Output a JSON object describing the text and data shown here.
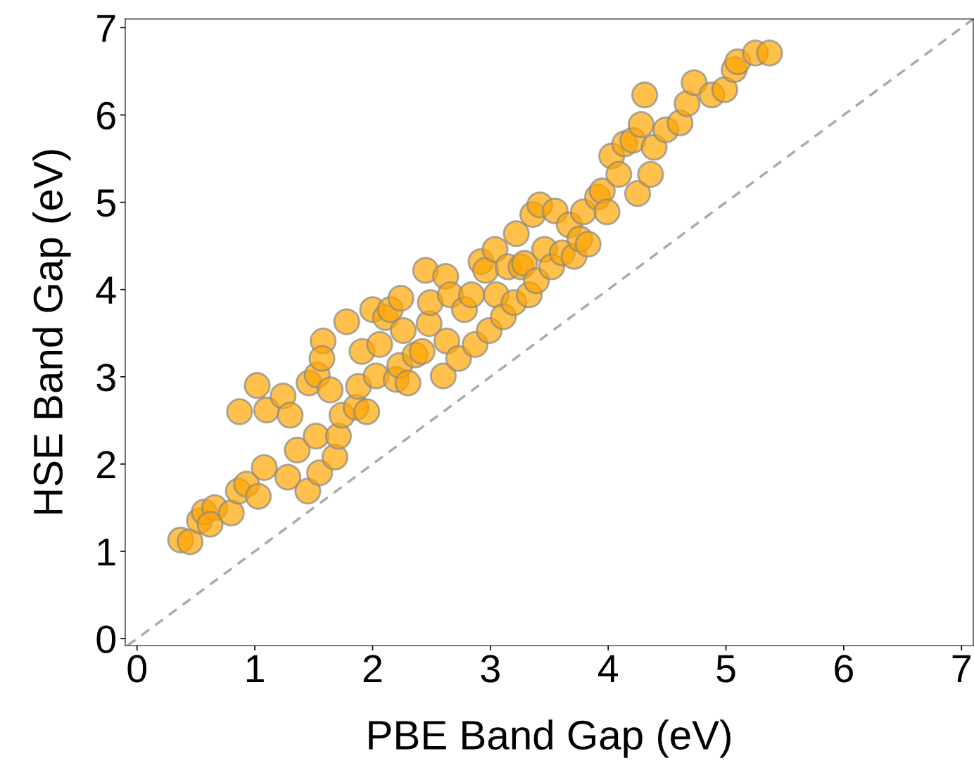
{
  "chart_data": {
    "type": "scatter",
    "xlabel": "PBE Band Gap (eV)",
    "ylabel": "HSE Band Gap (eV)",
    "xlim": [
      -0.1,
      7.1
    ],
    "ylim": [
      -0.08,
      7.1
    ],
    "xticks": [
      0,
      1,
      2,
      3,
      4,
      5,
      6,
      7
    ],
    "yticks": [
      0,
      1,
      2,
      3,
      4,
      5,
      6,
      7
    ],
    "grid": false,
    "series": [
      {
        "marker": "circle",
        "color": "#ffa500",
        "x": [
          0.37,
          0.45,
          0.53,
          0.57,
          0.66,
          0.62,
          0.8,
          0.86,
          0.93,
          1.03,
          1.08,
          0.87,
          1.02,
          1.1,
          1.24,
          1.3,
          1.28,
          1.36,
          1.45,
          1.46,
          1.53,
          1.58,
          1.57,
          1.52,
          1.55,
          1.64,
          1.68,
          1.71,
          1.74,
          1.78,
          1.86,
          1.88,
          1.91,
          1.95,
          2.0,
          2.03,
          2.06,
          2.11,
          2.15,
          2.2,
          2.23,
          2.24,
          2.26,
          2.3,
          2.36,
          2.42,
          2.45,
          2.48,
          2.49,
          2.6,
          2.62,
          2.63,
          2.66,
          2.73,
          2.78,
          2.84,
          2.87,
          2.92,
          2.96,
          2.99,
          3.04,
          3.05,
          3.11,
          3.15,
          3.2,
          3.22,
          3.26,
          3.29,
          3.33,
          3.36,
          3.39,
          3.42,
          3.46,
          3.52,
          3.55,
          3.61,
          3.67,
          3.71,
          3.76,
          3.79,
          3.83,
          3.91,
          3.95,
          3.99,
          4.03,
          4.09,
          4.14,
          4.21,
          4.25,
          4.28,
          4.31,
          4.36,
          4.39,
          4.49,
          4.61,
          4.67,
          4.73,
          4.88,
          4.99,
          5.07,
          5.1,
          5.25,
          5.37
        ],
        "values": [
          1.13,
          1.11,
          1.35,
          1.45,
          1.5,
          1.31,
          1.44,
          1.69,
          1.77,
          1.63,
          1.96,
          2.6,
          2.9,
          2.62,
          2.78,
          2.56,
          1.85,
          2.16,
          1.69,
          2.93,
          3.02,
          3.41,
          3.21,
          2.32,
          1.9,
          2.85,
          2.08,
          2.32,
          2.56,
          3.63,
          2.65,
          2.89,
          3.29,
          2.6,
          3.77,
          3.01,
          3.37,
          3.68,
          3.77,
          2.97,
          3.13,
          3.9,
          3.53,
          2.93,
          3.25,
          3.29,
          4.22,
          3.61,
          3.85,
          3.01,
          4.15,
          3.41,
          3.94,
          3.21,
          3.77,
          3.94,
          3.37,
          4.32,
          4.22,
          3.53,
          4.46,
          3.94,
          3.69,
          4.26,
          3.85,
          4.64,
          4.26,
          4.3,
          3.94,
          4.86,
          4.1,
          4.97,
          4.46,
          4.26,
          4.9,
          4.42,
          4.74,
          4.38,
          4.58,
          4.89,
          4.52,
          5.06,
          5.13,
          4.89,
          5.53,
          5.32,
          5.67,
          5.71,
          5.1,
          5.89,
          6.23,
          5.32,
          5.63,
          5.83,
          5.91,
          6.13,
          6.37,
          6.23,
          6.29,
          6.52,
          6.61,
          6.71,
          6.71
        ]
      },
      {
        "type": "line",
        "color": "#aaaaaa",
        "line_style": "dashed",
        "x": [
          -0.08,
          7.1
        ],
        "values": [
          -0.08,
          7.1
        ]
      }
    ]
  }
}
